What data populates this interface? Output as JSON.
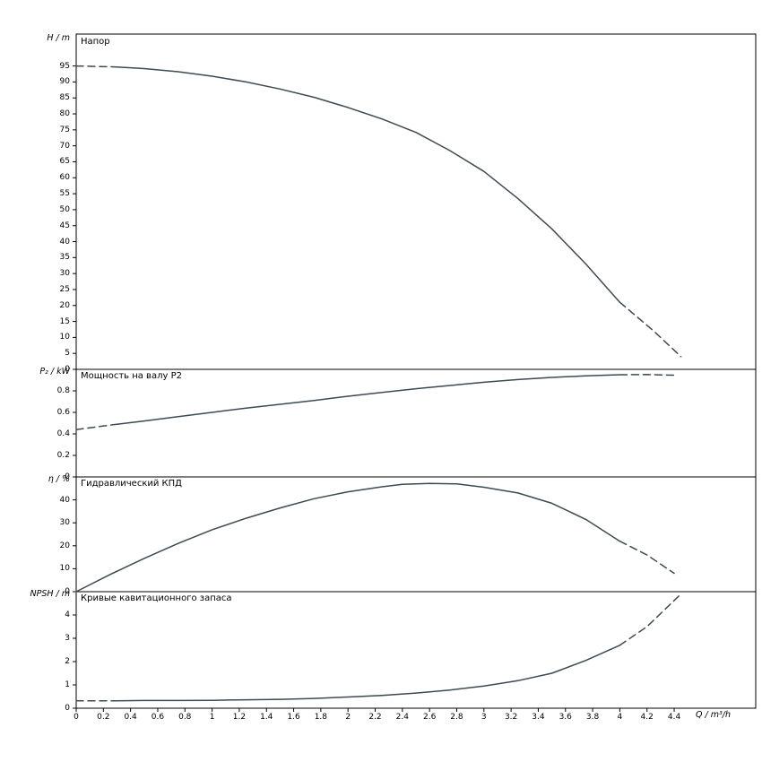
{
  "chart_data": {
    "type": "line",
    "xlabel": "Q / m³/h",
    "x_range": [
      0,
      5.0
    ],
    "x_ticks": [
      0,
      0.2,
      0.4,
      0.6,
      0.8,
      1,
      1.2,
      1.4,
      1.6,
      1.8,
      2,
      2.2,
      2.4,
      2.6,
      2.8,
      3,
      3.2,
      3.4,
      3.6,
      3.8,
      4,
      4.2,
      4.4
    ],
    "curve_color": "#3d4a52",
    "frame_color": "#000000",
    "panels": [
      {
        "id": "head",
        "title": "Напор",
        "ylabel": "H / m",
        "y_range": [
          0,
          105
        ],
        "y_ticks": [
          0,
          5,
          10,
          15,
          20,
          25,
          30,
          35,
          40,
          45,
          50,
          55,
          60,
          65,
          70,
          75,
          80,
          85,
          90,
          95
        ],
        "segments": [
          {
            "style": "dashed",
            "points": [
              [
                0,
                95
              ],
              [
                0.3,
                94.7
              ]
            ]
          },
          {
            "style": "solid",
            "points": [
              [
                0.3,
                94.7
              ],
              [
                0.5,
                94.2
              ],
              [
                0.75,
                93.2
              ],
              [
                1,
                91.8
              ],
              [
                1.25,
                90
              ],
              [
                1.5,
                87.8
              ],
              [
                1.75,
                85.2
              ],
              [
                2,
                82
              ],
              [
                2.25,
                78.4
              ],
              [
                2.5,
                74.2
              ],
              [
                2.75,
                68.5
              ],
              [
                3,
                62
              ],
              [
                3.25,
                53.5
              ],
              [
                3.5,
                44
              ],
              [
                3.75,
                33
              ],
              [
                4,
                21
              ]
            ]
          },
          {
            "style": "dashed",
            "points": [
              [
                4,
                21
              ],
              [
                4.25,
                12
              ],
              [
                4.45,
                4
              ]
            ]
          }
        ]
      },
      {
        "id": "power",
        "title": "Мощность на валу P2",
        "ylabel": "P₂ / kW",
        "y_range": [
          0,
          1.0
        ],
        "y_ticks": [
          0,
          0.2,
          0.4,
          0.6,
          0.8
        ],
        "segments": [
          {
            "style": "dashed",
            "points": [
              [
                0,
                0.44
              ],
              [
                0.3,
                0.49
              ]
            ]
          },
          {
            "style": "solid",
            "points": [
              [
                0.3,
                0.49
              ],
              [
                0.5,
                0.52
              ],
              [
                0.75,
                0.56
              ],
              [
                1,
                0.6
              ],
              [
                1.25,
                0.64
              ],
              [
                1.5,
                0.675
              ],
              [
                1.75,
                0.71
              ],
              [
                2,
                0.75
              ],
              [
                2.25,
                0.785
              ],
              [
                2.5,
                0.82
              ],
              [
                2.75,
                0.85
              ],
              [
                3,
                0.88
              ],
              [
                3.25,
                0.905
              ],
              [
                3.5,
                0.925
              ],
              [
                3.75,
                0.94
              ],
              [
                4,
                0.95
              ]
            ]
          },
          {
            "style": "dashed",
            "points": [
              [
                4,
                0.95
              ],
              [
                4.2,
                0.952
              ],
              [
                4.42,
                0.945
              ]
            ]
          }
        ]
      },
      {
        "id": "efficiency",
        "title": "Гидравлический КПД",
        "ylabel": "η / %",
        "y_range": [
          0,
          50
        ],
        "y_ticks": [
          0,
          10,
          20,
          30,
          40
        ],
        "segments": [
          {
            "style": "solid",
            "points": [
              [
                0,
                0
              ],
              [
                0.25,
                7.5
              ],
              [
                0.5,
                14.5
              ],
              [
                0.75,
                21
              ],
              [
                1,
                27
              ],
              [
                1.25,
                32
              ],
              [
                1.5,
                36.5
              ],
              [
                1.75,
                40.5
              ],
              [
                2,
                43.5
              ],
              [
                2.25,
                45.7
              ],
              [
                2.4,
                46.8
              ],
              [
                2.6,
                47.2
              ],
              [
                2.8,
                47
              ],
              [
                3,
                45.5
              ],
              [
                3.25,
                43
              ],
              [
                3.5,
                38.5
              ],
              [
                3.75,
                31.5
              ],
              [
                4,
                22
              ]
            ]
          },
          {
            "style": "dashed",
            "points": [
              [
                4,
                22
              ],
              [
                4.2,
                16
              ],
              [
                4.4,
                8
              ]
            ]
          }
        ]
      },
      {
        "id": "npsh",
        "title": "Кривые кавитационного запаса",
        "ylabel": "NPSH / m",
        "y_range": [
          0,
          5
        ],
        "y_ticks": [
          0,
          1,
          2,
          3,
          4
        ],
        "segments": [
          {
            "style": "dashed",
            "points": [
              [
                0,
                0.32
              ],
              [
                0.3,
                0.32
              ]
            ]
          },
          {
            "style": "solid",
            "points": [
              [
                0.3,
                0.32
              ],
              [
                0.5,
                0.33
              ],
              [
                0.75,
                0.33
              ],
              [
                1,
                0.34
              ],
              [
                1.25,
                0.36
              ],
              [
                1.5,
                0.38
              ],
              [
                1.75,
                0.42
              ],
              [
                2,
                0.48
              ],
              [
                2.25,
                0.55
              ],
              [
                2.5,
                0.65
              ],
              [
                2.75,
                0.78
              ],
              [
                3,
                0.95
              ],
              [
                3.25,
                1.18
              ],
              [
                3.5,
                1.5
              ],
              [
                3.75,
                2.05
              ],
              [
                4,
                2.7
              ]
            ]
          },
          {
            "style": "dashed",
            "points": [
              [
                4,
                2.7
              ],
              [
                4.2,
                3.5
              ],
              [
                4.45,
                4.9
              ]
            ]
          }
        ]
      }
    ]
  }
}
